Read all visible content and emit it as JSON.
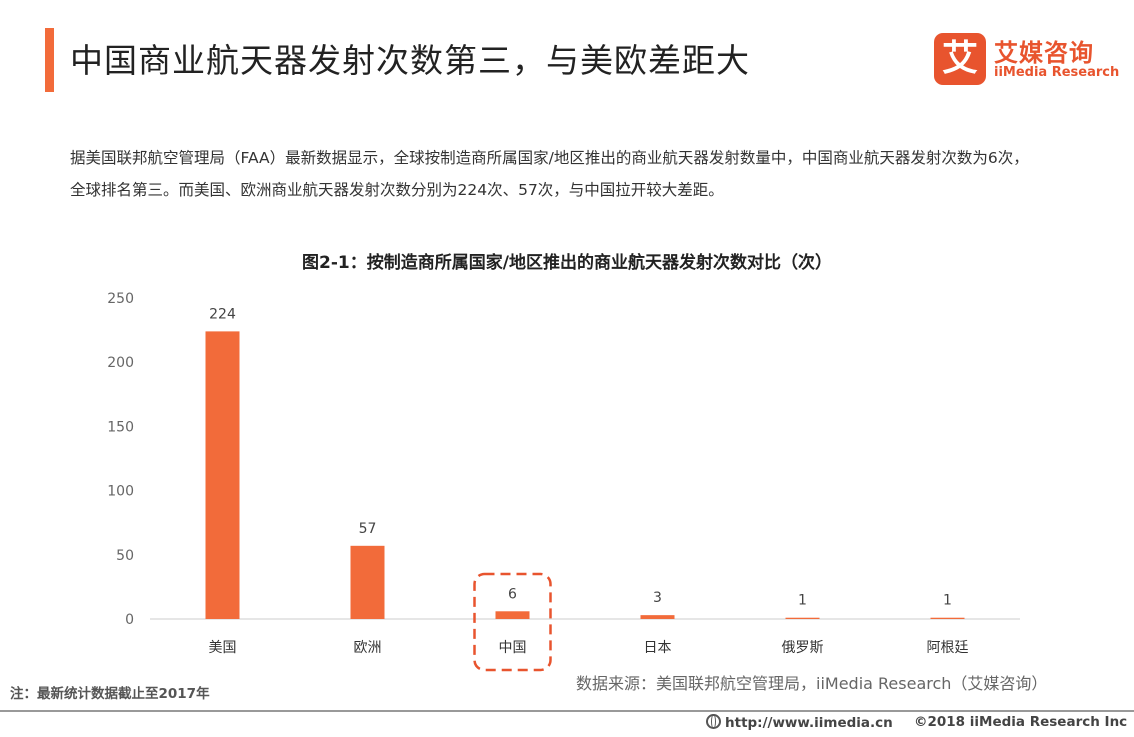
{
  "header": {
    "title": "中国商业航天器发射次数第三，与美欧差距大",
    "accent_color": "#f26b3a"
  },
  "logo": {
    "mark": "艾",
    "name_cn": "艾媒咨询",
    "name_en": "iiMedia Research",
    "color": "#e8542e"
  },
  "intro": {
    "text": "据美国联邦航空管理局（FAA）最新数据显示，全球按制造商所属国家/地区推出的商业航天器发射数量中，中国商业航天器发射次数为6次，全球排名第三。而美国、欧洲商业航天器发射次数分别为224次、57次，与中国拉开较大差距。"
  },
  "chart_data": {
    "type": "bar",
    "title": "图2-1：按制造商所属国家/地区推出的商业航天器发射次数对比（次）",
    "categories": [
      "美国",
      "欧洲",
      "中国",
      "日本",
      "俄罗斯",
      "阿根廷"
    ],
    "values": [
      224,
      57,
      6,
      3,
      1,
      1
    ],
    "data_labels": [
      "224",
      "57",
      "6",
      "3",
      "1",
      "1"
    ],
    "ylim": [
      0,
      250
    ],
    "yticks": [
      "0",
      "50",
      "100",
      "150",
      "200",
      "250"
    ],
    "yticks_values": [
      0,
      50,
      100,
      150,
      200,
      250
    ],
    "grid": false,
    "highlight_category": "中国",
    "bar_color": "#f26b3a",
    "highlight_border_color": "#e8542e"
  },
  "footer": {
    "note": "注：最新统计数据截止至2017年",
    "source": "数据来源：美国联邦航空管理局，iiMedia Research（艾媒咨询）",
    "url": "http://www.iimedia.cn",
    "copyright": "©2018  iiMedia Research  Inc"
  }
}
